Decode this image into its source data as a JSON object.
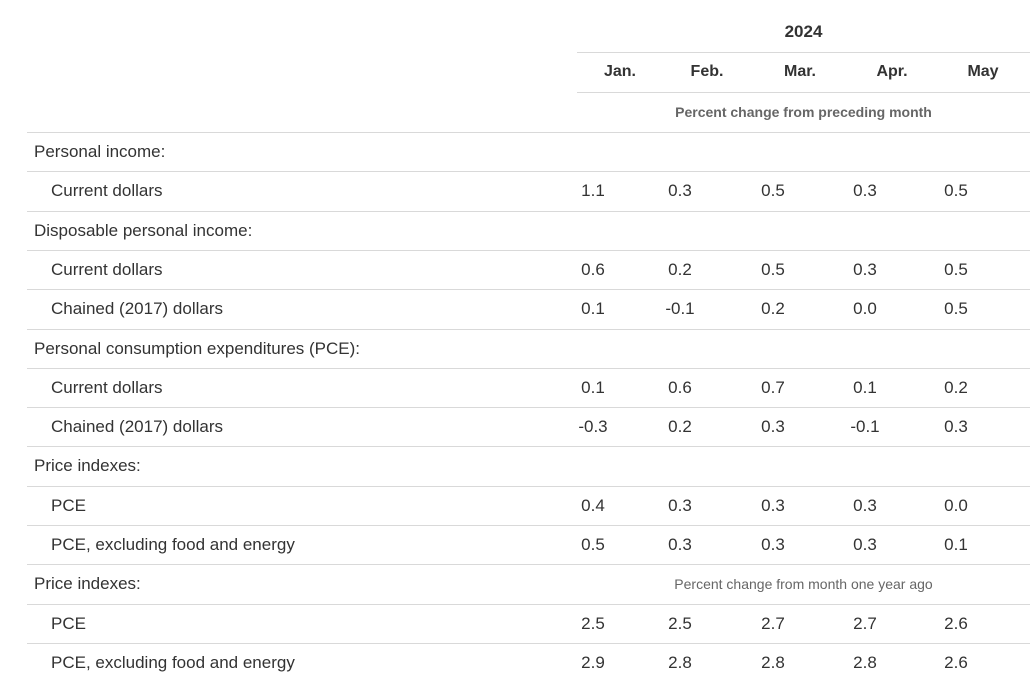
{
  "header": {
    "year": "2024",
    "months": [
      "Jan.",
      "Feb.",
      "Mar.",
      "Apr.",
      "May"
    ],
    "subheading": "Percent change from preceding month"
  },
  "rows": [
    {
      "type": "section",
      "label": "Personal income:"
    },
    {
      "type": "item",
      "label": "Current dollars",
      "values": [
        "1.1",
        "0.3",
        "0.5",
        "0.3",
        "0.5"
      ]
    },
    {
      "type": "section",
      "label": "Disposable personal income:"
    },
    {
      "type": "item",
      "label": "Current dollars",
      "values": [
        "0.6",
        "0.2",
        "0.5",
        "0.3",
        "0.5"
      ]
    },
    {
      "type": "item",
      "label": "Chained (2017) dollars",
      "values": [
        "0.1",
        "-0.1",
        "0.2",
        "0.0",
        "0.5"
      ]
    },
    {
      "type": "section",
      "label": "Personal consumption expenditures (PCE):"
    },
    {
      "type": "item",
      "label": "Current dollars",
      "values": [
        "0.1",
        "0.6",
        "0.7",
        "0.1",
        "0.2"
      ]
    },
    {
      "type": "item",
      "label": "Chained (2017) dollars",
      "values": [
        "-0.3",
        "0.2",
        "0.3",
        "-0.1",
        "0.3"
      ]
    },
    {
      "type": "section",
      "label": "Price indexes:"
    },
    {
      "type": "item",
      "label": "PCE",
      "values": [
        "0.4",
        "0.3",
        "0.3",
        "0.3",
        "0.0"
      ]
    },
    {
      "type": "item",
      "label": "PCE, excluding food and energy",
      "values": [
        "0.5",
        "0.3",
        "0.3",
        "0.3",
        "0.1"
      ]
    },
    {
      "type": "section",
      "label": "Price indexes:",
      "note": "Percent change from month one year ago"
    },
    {
      "type": "item",
      "label": "PCE",
      "values": [
        "2.5",
        "2.5",
        "2.7",
        "2.7",
        "2.6"
      ]
    },
    {
      "type": "item",
      "label": "PCE, excluding food and energy",
      "values": [
        "2.9",
        "2.8",
        "2.8",
        "2.8",
        "2.6"
      ]
    }
  ]
}
